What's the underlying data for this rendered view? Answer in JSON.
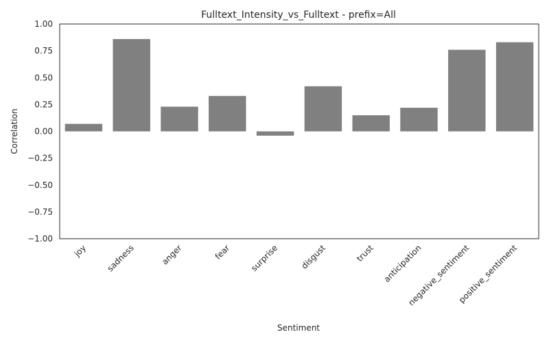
{
  "chart_data": {
    "type": "bar",
    "title": "Fulltext_Intensity_vs_Fulltext - prefix=All",
    "xlabel": "Sentiment",
    "ylabel": "Correlation",
    "categories": [
      "joy",
      "sadness",
      "anger",
      "fear",
      "surprise",
      "disgust",
      "trust",
      "anticipation",
      "negative_sentiment",
      "positive_sentiment"
    ],
    "values": [
      0.07,
      0.86,
      0.23,
      0.33,
      -0.04,
      0.42,
      0.15,
      0.22,
      0.76,
      0.83
    ],
    "ylim": [
      -1.0,
      1.0
    ],
    "yticks": [
      1.0,
      0.75,
      0.5,
      0.25,
      0.0,
      -0.25,
      -0.5,
      -0.75,
      -1.0
    ],
    "ytick_labels": [
      "1.00",
      "0.75",
      "0.50",
      "0.25",
      "0.00",
      "−0.25",
      "−0.50",
      "−0.75",
      "−1.00"
    ],
    "grid": false,
    "bar_color": "#808080",
    "axis_color": "#262626"
  }
}
